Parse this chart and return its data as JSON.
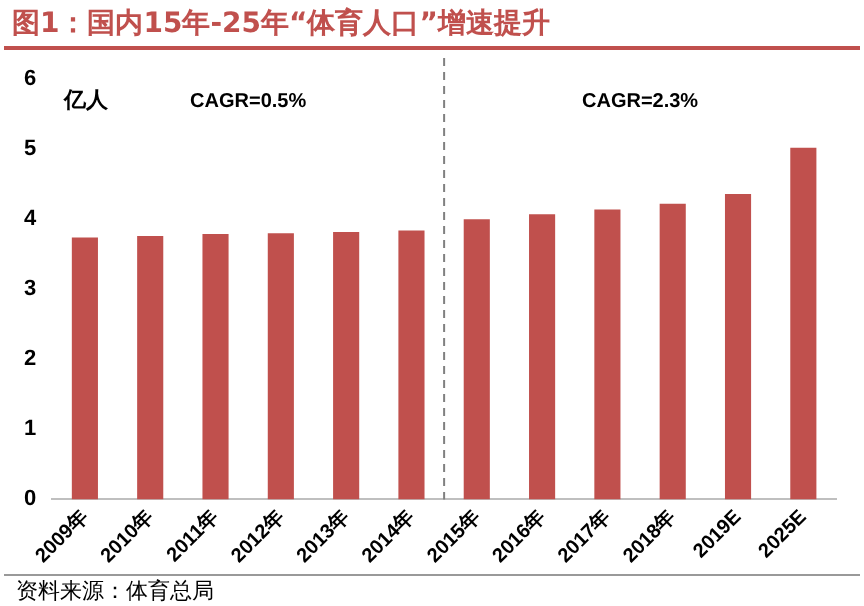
{
  "chart_data": {
    "type": "bar",
    "title": "图1：国内15年-25年“体育人口”增速提升",
    "ylabel": "亿人",
    "categories": [
      "2009年",
      "2010年",
      "2011年",
      "2012年",
      "2013年",
      "2014年",
      "2015年",
      "2016年",
      "2017年",
      "2018年",
      "2019E",
      "2025E"
    ],
    "values": [
      3.74,
      3.76,
      3.79,
      3.8,
      3.82,
      3.84,
      4.0,
      4.07,
      4.14,
      4.22,
      4.36,
      5.02
    ],
    "color": "#c0504d",
    "ylim": [
      0,
      6
    ],
    "yticks": [
      0,
      1,
      2,
      3,
      4,
      5,
      6
    ],
    "grid": false,
    "legend": false,
    "annotations": [
      "CAGR=0.5%",
      "CAGR=2.3%",
      "资料来源：体育总局"
    ]
  }
}
